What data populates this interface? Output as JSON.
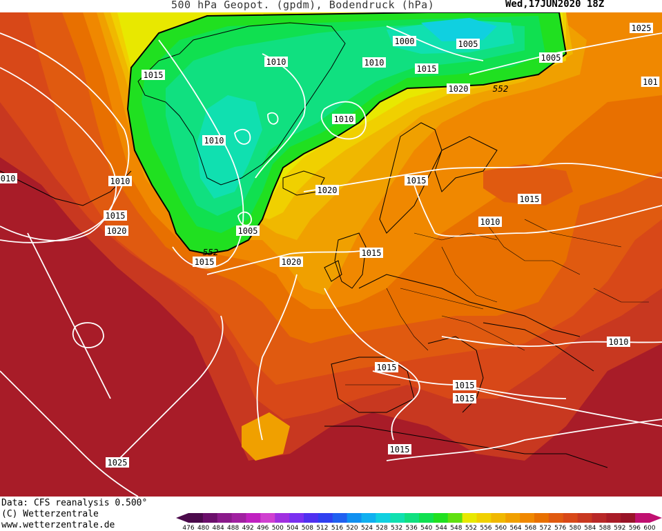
{
  "header": {
    "title": "500 hPa Geopot. (gpdm), Bodendruck (hPa)",
    "datetime": "Wed,17JUN2020 18Z"
  },
  "footer": {
    "data_source": "Data: CFS reanalysis 0.500°",
    "copyright": "(C) Wetterzentrale",
    "website": "www.wetterzentrale.de"
  },
  "colorbar": {
    "labels": [
      "476",
      "480",
      "484",
      "488",
      "492",
      "496",
      "500",
      "504",
      "508",
      "512",
      "516",
      "520",
      "524",
      "528",
      "532",
      "536",
      "540",
      "544",
      "548",
      "552",
      "556",
      "560",
      "564",
      "568",
      "572",
      "576",
      "580",
      "584",
      "588",
      "592",
      "596",
      "600"
    ],
    "colors": [
      "#4b0a4b",
      "#6b0f6b",
      "#8a1a8a",
      "#a020a0",
      "#c020c0",
      "#d040d0",
      "#a030e0",
      "#7a30f0",
      "#5030f0",
      "#3040f0",
      "#2060f0",
      "#1090f0",
      "#10b0f0",
      "#10d0e0",
      "#10e0b0",
      "#10e080",
      "#10e050",
      "#20e020",
      "#60e010",
      "#e8e800",
      "#f0d000",
      "#f0b800",
      "#f0a000",
      "#f08800",
      "#e87000",
      "#e05a10",
      "#d84818",
      "#c83820",
      "#b82828",
      "#a81c28",
      "#981428",
      "#c01070"
    ]
  },
  "isobar_labels": [
    {
      "text": "1000"
    },
    {
      "text": "1005"
    },
    {
      "text": "1010"
    },
    {
      "text": "1005"
    },
    {
      "text": "1015"
    },
    {
      "text": "1010"
    },
    {
      "text": "1015"
    },
    {
      "text": "1010"
    },
    {
      "text": "1020"
    },
    {
      "text": "1015"
    },
    {
      "text": "1010"
    },
    {
      "text": "1010"
    },
    {
      "text": "1015"
    },
    {
      "text": "1020"
    },
    {
      "text": "1005"
    },
    {
      "text": "1015"
    },
    {
      "text": "1020"
    },
    {
      "text": "1015"
    },
    {
      "text": "1015"
    },
    {
      "text": "1015"
    },
    {
      "text": "1010"
    },
    {
      "text": "1020"
    },
    {
      "text": "1015"
    },
    {
      "text": "1010"
    },
    {
      "text": "1015"
    },
    {
      "text": "1015"
    },
    {
      "text": "1010"
    },
    {
      "text": "1025"
    },
    {
      "text": "1025"
    },
    {
      "text": "101"
    }
  ],
  "geopot_labels": [
    "552",
    "552"
  ],
  "legend": {
    "min_label": "476",
    "max_label": "600"
  }
}
